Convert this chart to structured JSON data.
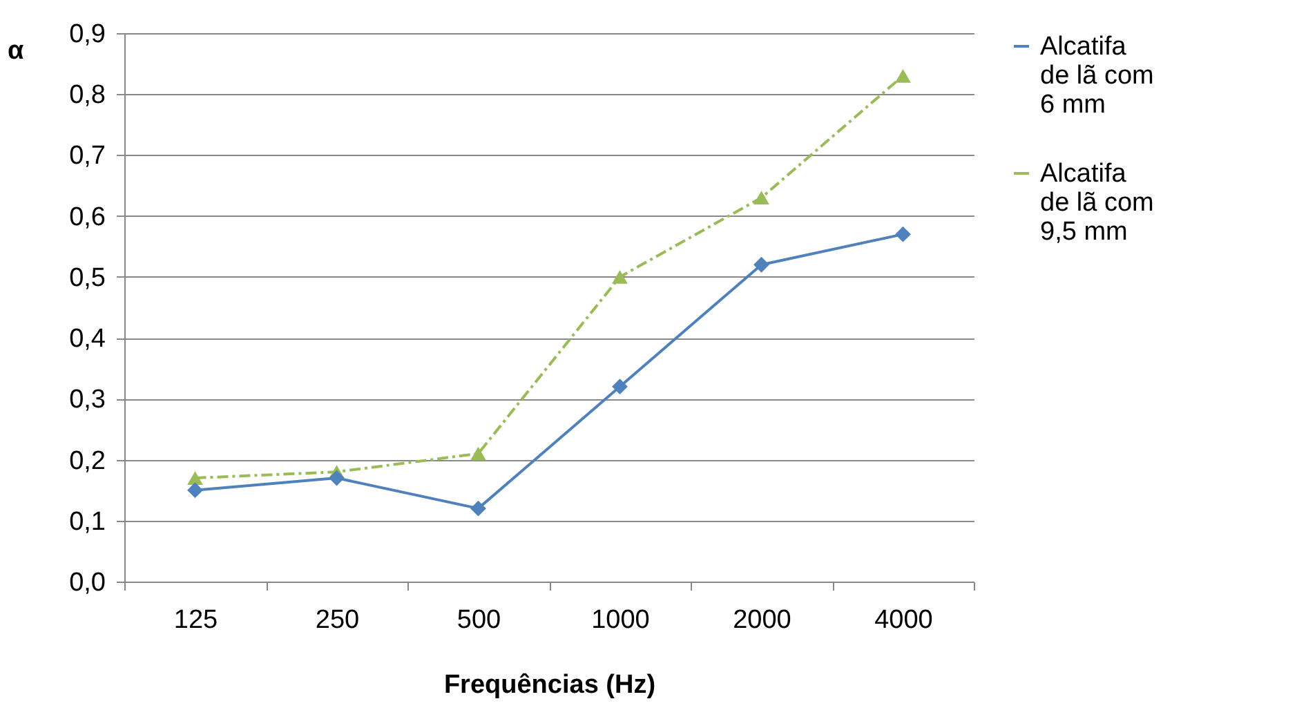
{
  "chart_data": {
    "type": "line",
    "xlabel": "Frequências (Hz)",
    "ylabel": "α",
    "categories": [
      "125",
      "250",
      "500",
      "1000",
      "2000",
      "4000"
    ],
    "series": [
      {
        "name": "Alcatifa de lã com 6 mm",
        "color": "#4f81bd",
        "marker": "diamond",
        "line_style": "solid",
        "values": [
          0.15,
          0.17,
          0.12,
          0.32,
          0.52,
          0.57
        ]
      },
      {
        "name": "Alcatifa de lã com 9,5 mm",
        "color": "#9bbb59",
        "marker": "triangle",
        "line_style": "dashed",
        "values": [
          0.17,
          0.18,
          0.21,
          0.5,
          0.63,
          0.83
        ]
      }
    ],
    "ylim": [
      0,
      0.9
    ],
    "yticks": [
      {
        "value": 0,
        "label": "0,0"
      },
      {
        "value": 0.1,
        "label": "0,1"
      },
      {
        "value": 0.2,
        "label": "0,2"
      },
      {
        "value": 0.3,
        "label": "0,3"
      },
      {
        "value": 0.4,
        "label": "0,4"
      },
      {
        "value": 0.5,
        "label": "0,5"
      },
      {
        "value": 0.6,
        "label": "0,6"
      },
      {
        "value": 0.7,
        "label": "0,7"
      },
      {
        "value": 0.8,
        "label": "0,8"
      },
      {
        "value": 0.9,
        "label": "0,9"
      }
    ],
    "grid": "y",
    "legend": "right"
  }
}
